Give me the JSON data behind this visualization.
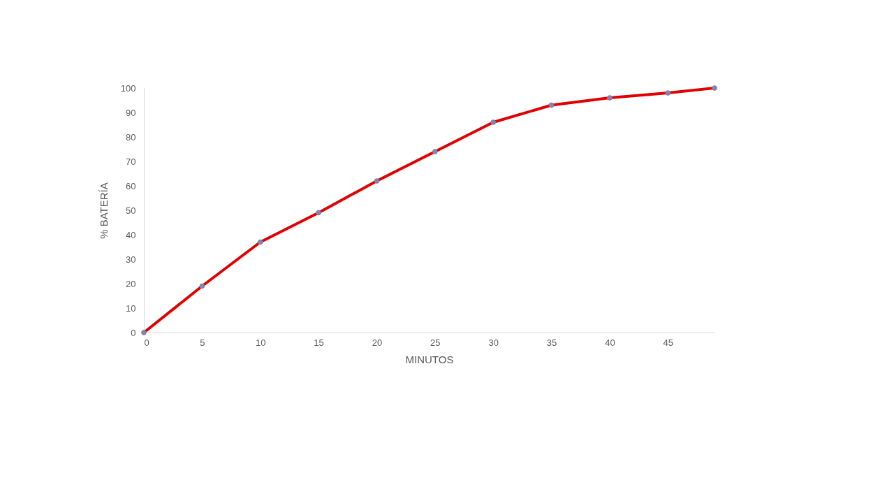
{
  "chart_data": {
    "type": "line",
    "xlabel": "MINUTOS",
    "ylabel": "% BATERÍA",
    "x": [
      0,
      5,
      10,
      15,
      20,
      25,
      30,
      35,
      40,
      45,
      49
    ],
    "series": [
      {
        "color": "#e00000",
        "values": [
          0,
          19,
          37,
          49,
          62,
          74,
          86,
          93,
          96,
          98,
          100
        ]
      }
    ],
    "xlim": [
      0,
      49
    ],
    "xticks": [
      0,
      5,
      10,
      15,
      20,
      25,
      30,
      35,
      40,
      45
    ],
    "ylim": [
      0,
      100
    ],
    "yticks": [
      0,
      10,
      20,
      30,
      40,
      50,
      60,
      70,
      80,
      90,
      100
    ],
    "marker": "circle",
    "grid": false
  }
}
